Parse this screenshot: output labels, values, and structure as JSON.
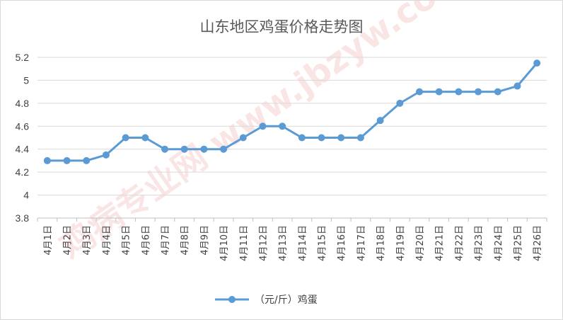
{
  "chart_data": {
    "type": "line",
    "title": "山东地区鸡蛋价格走势图",
    "xlabel": "",
    "ylabel": "",
    "categories": [
      "4月1日",
      "4月2日",
      "4月3日",
      "4月4日",
      "4月5日",
      "4月6日",
      "4月7日",
      "4月8日",
      "4月9日",
      "4月10日",
      "4月11日",
      "4月12日",
      "4月13日",
      "4月14日",
      "4月15日",
      "4月16日",
      "4月17日",
      "4月18日",
      "4月19日",
      "4月20日",
      "4月21日",
      "4月22日",
      "4月23日",
      "4月24日",
      "4月25日",
      "4月26日"
    ],
    "series": [
      {
        "name": "（元/斤）鸡蛋",
        "color": "#5b9bd5",
        "values": [
          4.3,
          4.3,
          4.3,
          4.35,
          4.5,
          4.5,
          4.4,
          4.4,
          4.4,
          4.4,
          4.5,
          4.6,
          4.6,
          4.5,
          4.5,
          4.5,
          4.5,
          4.65,
          4.8,
          4.9,
          4.9,
          4.9,
          4.9,
          4.9,
          4.95,
          5.15
        ]
      }
    ],
    "ylim": [
      3.8,
      5.2
    ],
    "yticks": [
      "3.8",
      "4",
      "4.2",
      "4.4",
      "4.6",
      "4.8",
      "5",
      "5.2"
    ],
    "grid": true,
    "legend": "bottom",
    "watermark": "鸡病专业网 www.jbzyw.com"
  }
}
